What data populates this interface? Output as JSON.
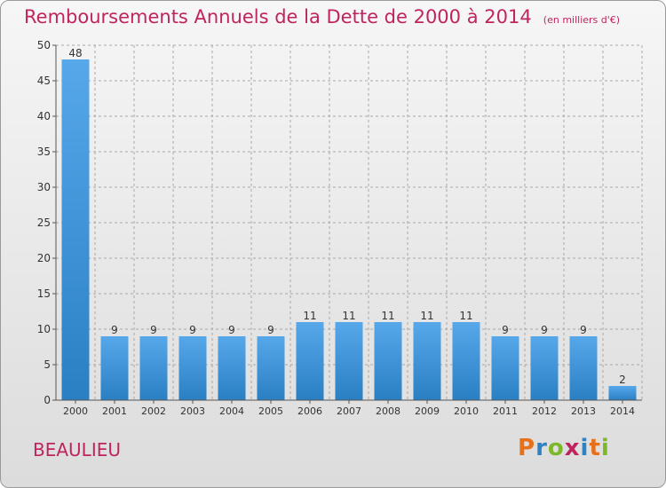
{
  "header": {
    "title": "Remboursements Annuels de la Dette de 2000 à 2014",
    "subtitle": "(en milliers d'€)"
  },
  "footer": {
    "commune": "BEAULIEU",
    "brand": "Proxiti",
    "brand_colors": [
      "#e8701a",
      "#2e82c4",
      "#7cb829",
      "#c0245f",
      "#2e82c4",
      "#e8701a",
      "#7cb829"
    ]
  },
  "colors": {
    "title": "#c0245f",
    "bar_light": "#56a8ea",
    "bar_dark": "#2a7fc3",
    "grid": "#a8a8a8"
  },
  "chart_data": {
    "type": "bar",
    "categories": [
      "2000",
      "2001",
      "2002",
      "2003",
      "2004",
      "2005",
      "2006",
      "2007",
      "2008",
      "2009",
      "2010",
      "2011",
      "2012",
      "2013",
      "2014"
    ],
    "values": [
      48,
      9,
      9,
      9,
      9,
      9,
      11,
      11,
      11,
      11,
      11,
      9,
      9,
      9,
      2
    ],
    "title": "Remboursements Annuels de la Dette de 2000 à 2014",
    "subtitle": "(en milliers d'€)",
    "ylim": [
      0,
      50
    ],
    "yticks": [
      0,
      5,
      10,
      15,
      20,
      25,
      30,
      35,
      40,
      45,
      50
    ],
    "grid": true,
    "data_labels": true
  }
}
